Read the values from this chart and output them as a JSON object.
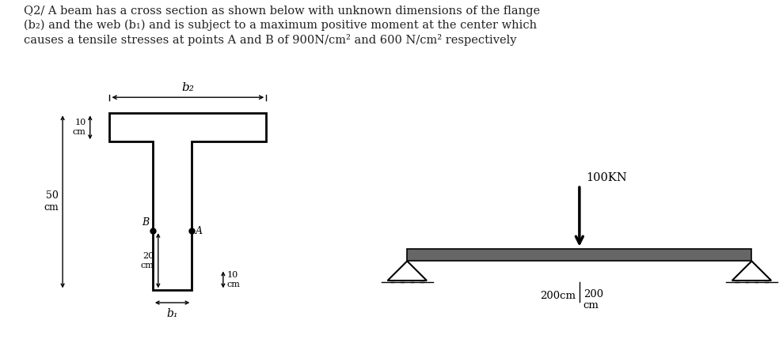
{
  "bg_color": "#ffffff",
  "text_color": "#222222",
  "title_line1": "Q2/ A beam has a cross section as shown below with unknown dimensions of the flange",
  "title_line2": "(b₂) and the web (b₁) and is subject to a maximum positive moment at the center which",
  "title_line3": "causes a tensile stresses at points A and B of 900N/cm² and 600 N/cm² respectively",
  "title_fontsize": 10.5,
  "lw": 2.0,
  "cs": {
    "fx": 0.14,
    "fy": 0.6,
    "fw": 0.2,
    "fh": 0.08,
    "wx": 0.195,
    "wy": 0.18,
    "ww": 0.05,
    "wh": 0.42
  },
  "beam": {
    "bx": 0.52,
    "by": 0.28,
    "bw": 0.44,
    "bh": 0.035
  }
}
